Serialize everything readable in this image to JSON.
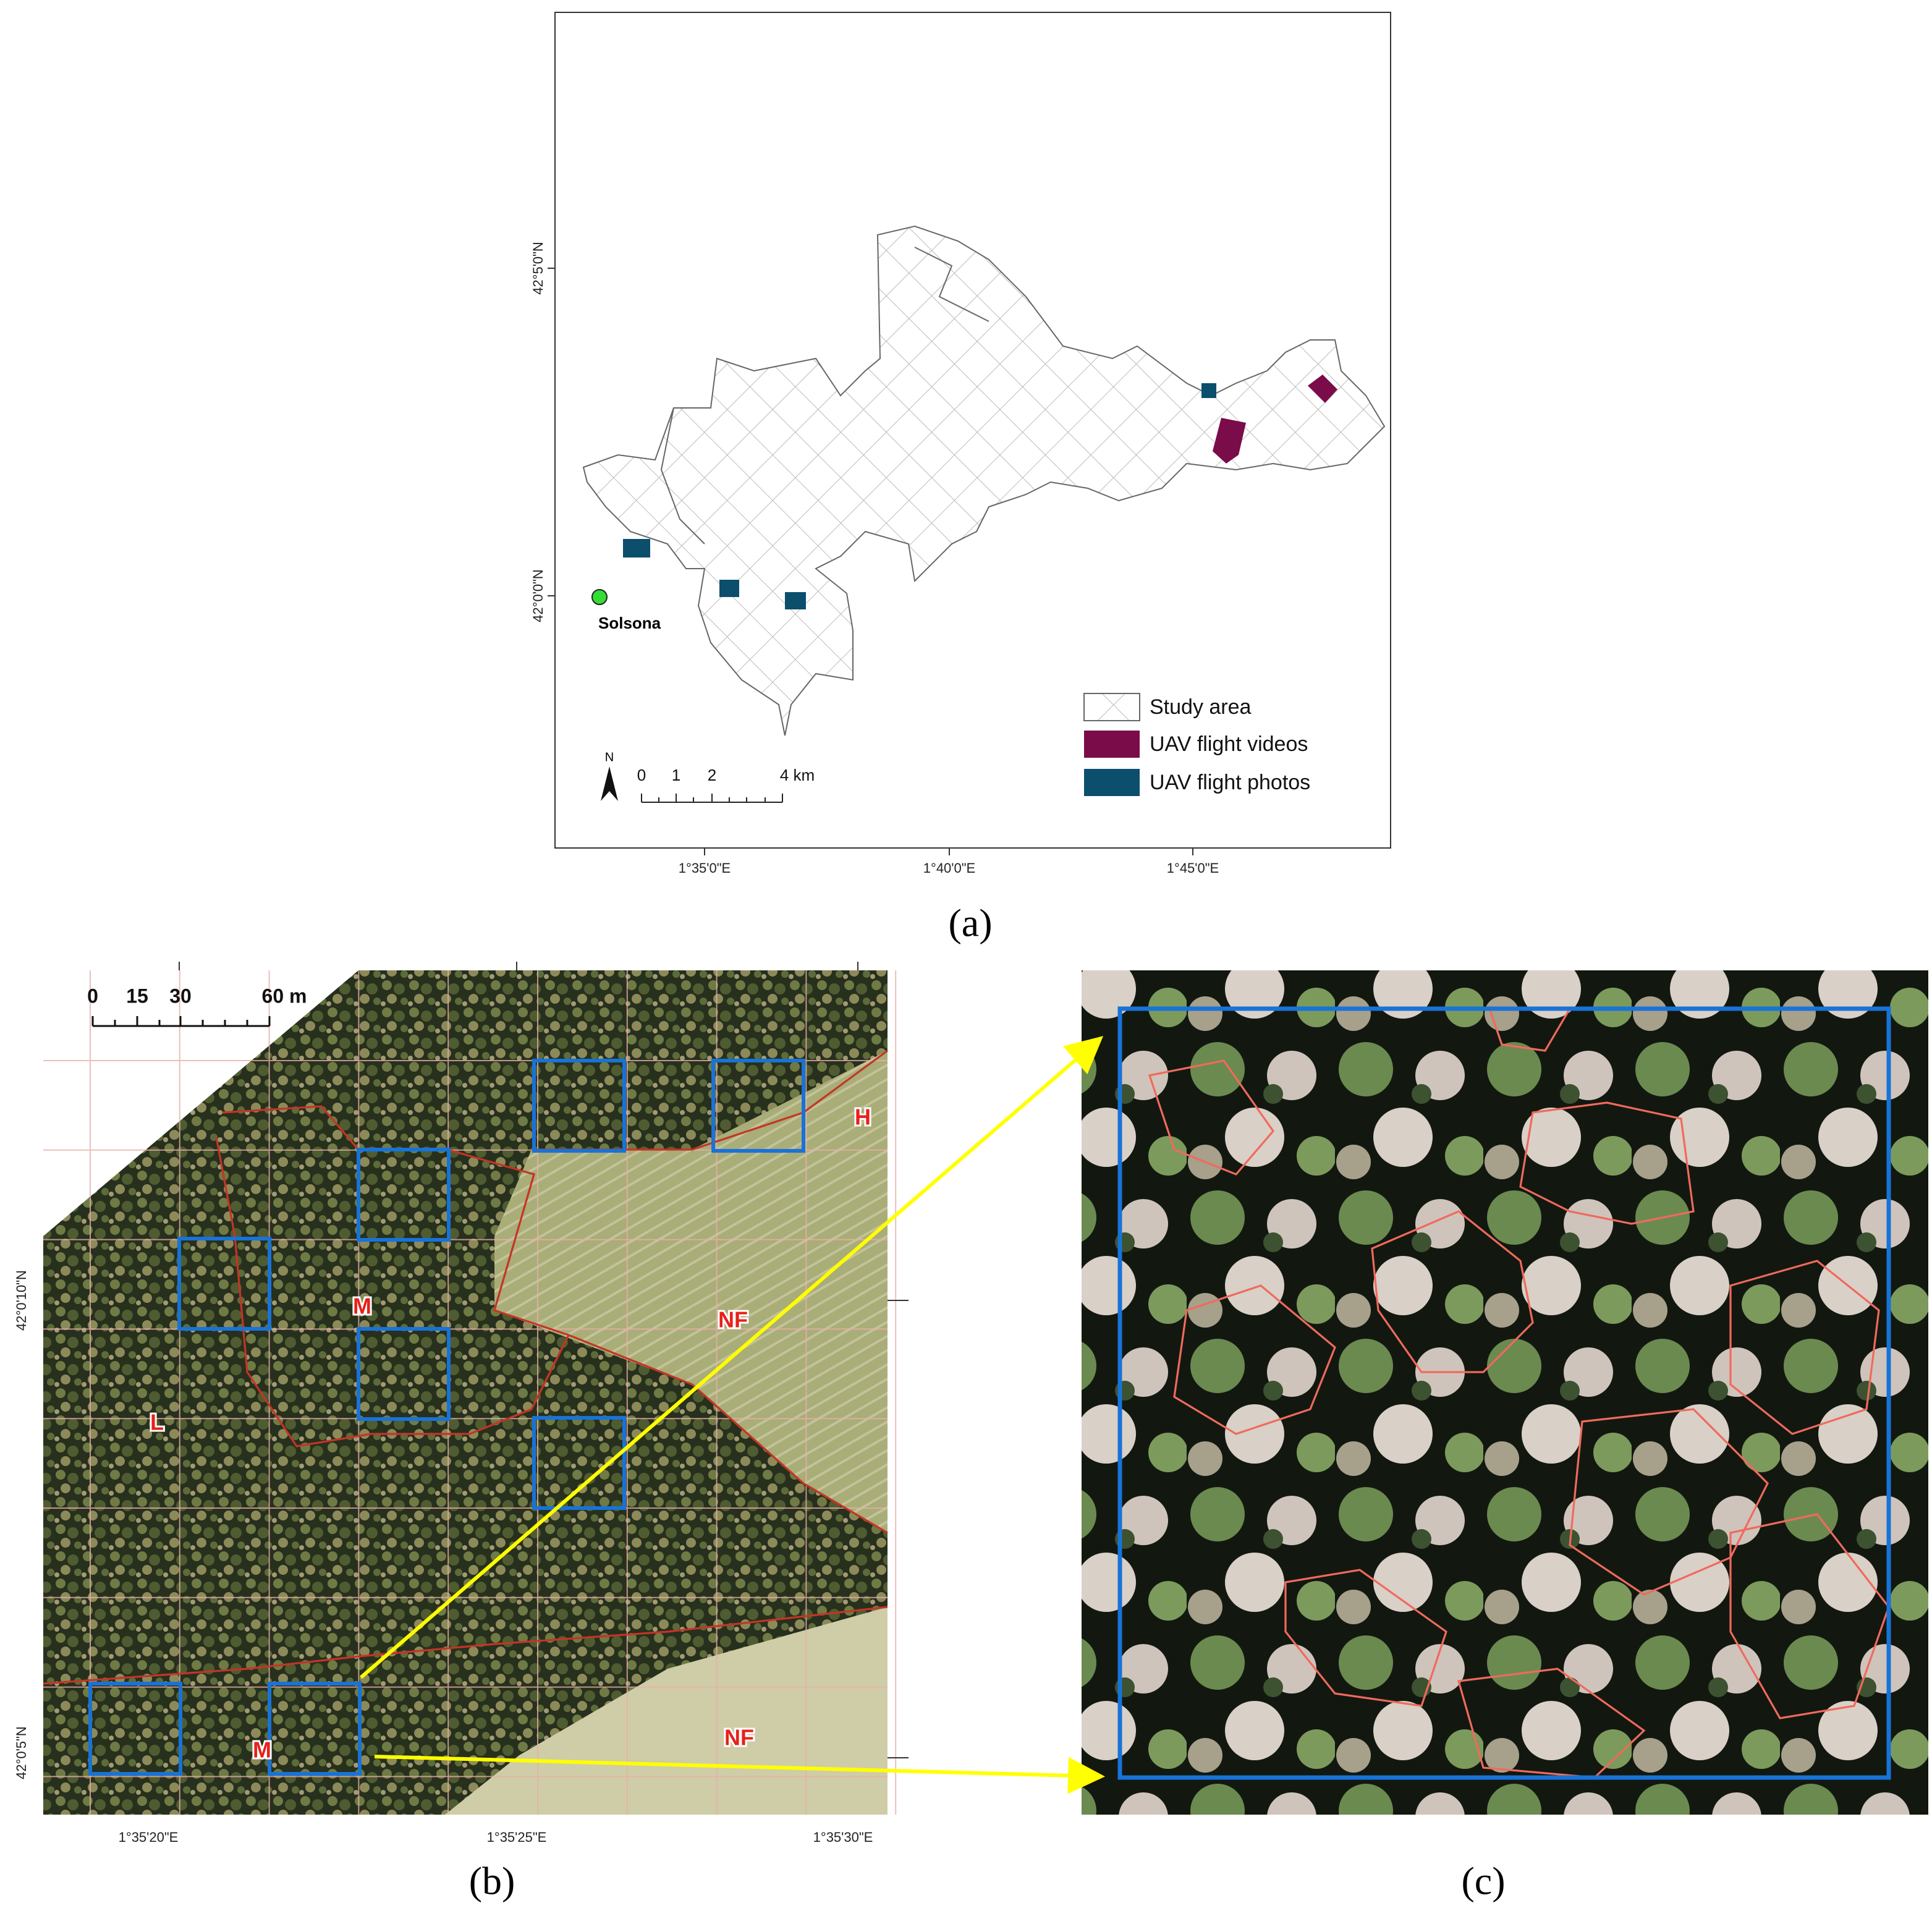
{
  "panel_a": {
    "lat_labels": [
      "42°5'0\"N",
      "42°0'0\"N"
    ],
    "lon_labels": [
      "1°35'0\"E",
      "1°40'0\"E",
      "1°45'0\"E"
    ],
    "place": "Solsona",
    "legend": [
      "Study area",
      "UAV flight videos",
      "UAV flight photos"
    ],
    "north": "N",
    "scale_labels": [
      "0",
      "1",
      "2",
      "4 km"
    ],
    "caption": "(a)"
  },
  "panel_b": {
    "scale_labels": [
      "0",
      "15",
      "30",
      "60 m"
    ],
    "zone_labels": [
      "H",
      "M",
      "NF",
      "L",
      "M",
      "NF"
    ],
    "lat_labels": [
      "42°0'10\"N",
      "42°0'5\"N"
    ],
    "lon_labels": [
      "1°35'20\"E",
      "1°35'25\"E",
      "1°35'30\"E"
    ],
    "caption": "(b)"
  },
  "panel_c": {
    "caption": "(c)"
  }
}
